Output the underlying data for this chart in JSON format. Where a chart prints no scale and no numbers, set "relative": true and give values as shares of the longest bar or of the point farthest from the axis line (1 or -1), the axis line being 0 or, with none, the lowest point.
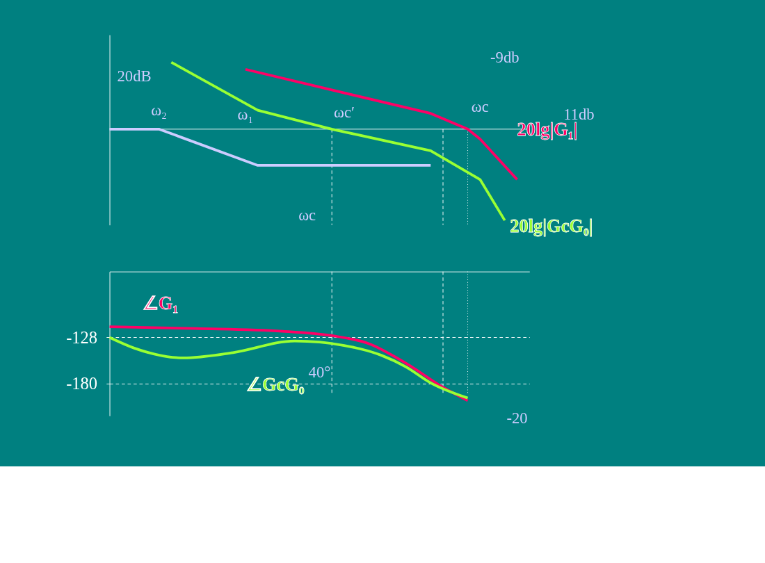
{
  "chart_data": [
    {
      "type": "line",
      "relative": true,
      "tick_labels": false,
      "categories": [
        null,
        null,
        null,
        null,
        null,
        null,
        null,
        null,
        null,
        null,
        null,
        null,
        null,
        null,
        null,
        null,
        null,
        null,
        null,
        null,
        null,
        null,
        null,
        null,
        null,
        null,
        null,
        null,
        null,
        null,
        null,
        null,
        null,
        null,
        null
      ],
      "series": [
        {
          "name": "20lg|G₁|",
          "color": "#ff0066",
          "values": [
            null,
            null,
            null,
            null,
            null,
            null,
            null,
            null,
            null,
            null,
            null,
            0.655,
            null,
            null,
            null,
            null,
            null,
            null,
            null,
            null,
            null,
            null,
            null,
            null,
            null,
            null,
            0.172,
            null,
            null,
            0,
            -0.108,
            null,
            null,
            -0.552,
            null
          ]
        },
        {
          "name": "20lg|GcG₀|",
          "color": "#99ff33",
          "values": [
            null,
            null,
            null,
            null,
            null,
            0.733,
            null,
            null,
            null,
            null,
            null,
            null,
            0.207,
            null,
            null,
            null,
            null,
            null,
            0,
            null,
            null,
            null,
            null,
            null,
            null,
            null,
            -0.237,
            null,
            null,
            null,
            -0.552,
            null,
            -1,
            null,
            null
          ]
        },
        {
          "color": "#ccccff",
          "values": [
            0,
            null,
            null,
            null,
            0,
            null,
            null,
            null,
            null,
            null,
            null,
            null,
            -0.397,
            null,
            null,
            null,
            null,
            null,
            null,
            null,
            null,
            null,
            null,
            null,
            null,
            null,
            -0.397,
            null,
            null,
            null,
            null,
            null,
            null,
            null,
            null
          ]
        }
      ],
      "annotations": [
        "20dB",
        "ω₂",
        "ω₁",
        "ωc′",
        "-9db",
        "ωc",
        "11db",
        "ωc"
      ]
    },
    {
      "type": "line",
      "ylim": [
        -216,
        -54
      ],
      "yticks": [
        -128,
        -180
      ],
      "tick_labels": "y",
      "grid": true,
      "categories": [
        null,
        null,
        null,
        null,
        null,
        null,
        null,
        null,
        null,
        null,
        null,
        null,
        null,
        null,
        null,
        null,
        null,
        null,
        null,
        null,
        null,
        null,
        null,
        null,
        null,
        null,
        null,
        null,
        null,
        null,
        null,
        null,
        null,
        null,
        null
      ],
      "series": [
        {
          "name": "∠G₁",
          "color": "#ff0066",
          "values": [
            -116,
            null,
            null,
            null,
            null,
            null,
            null,
            -118,
            null,
            null,
            null,
            null,
            null,
            null,
            -121,
            null,
            null,
            null,
            -126,
            null,
            null,
            -135,
            null,
            null,
            -157,
            null,
            null,
            -184,
            null,
            -199,
            null,
            null,
            null,
            null,
            null
          ]
        },
        {
          "name": "∠GcG₀",
          "color": "#99ff33",
          "values": [
            -128,
            null,
            -140,
            null,
            null,
            null,
            -151,
            null,
            null,
            null,
            -145,
            null,
            null,
            null,
            null,
            -132,
            null,
            null,
            null,
            -137,
            null,
            null,
            -148,
            null,
            -161,
            null,
            -179,
            null,
            null,
            -196,
            null,
            null,
            null,
            null,
            null
          ]
        }
      ],
      "annotations": [
        "40°",
        "-20"
      ]
    }
  ]
}
